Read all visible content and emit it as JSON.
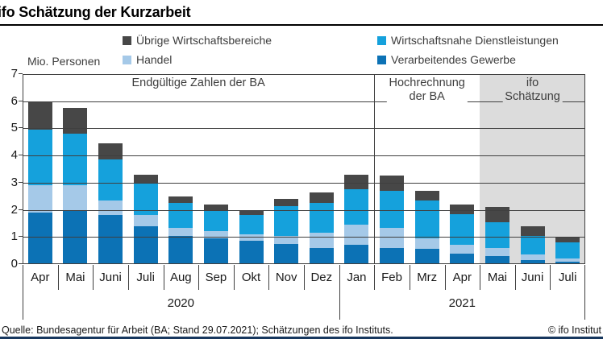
{
  "header": {
    "title": "ifo Schätzung der Kurzarbeit"
  },
  "axis_note": "Mio. Personen",
  "legend": [
    {
      "label": "Übrige Wirtschaftsbereiche",
      "color": "#474747"
    },
    {
      "label": "Wirtschaftsnahe Dienstleistungen",
      "color": "#15a1dc"
    },
    {
      "label": "Handel",
      "color": "#a5c9e8"
    },
    {
      "label": "Verarbeitendes Gewerbe",
      "color": "#0c72b5"
    }
  ],
  "chart_data": {
    "type": "bar",
    "stacked": true,
    "title": "ifo Schätzung der Kurzarbeit",
    "ylabel": "Mio. Personen",
    "ylim": [
      0,
      7
    ],
    "yticks": [
      0,
      1,
      2,
      3,
      4,
      5,
      6,
      7
    ],
    "grid": true,
    "categories": [
      "Apr",
      "Mai",
      "Juni",
      "Juli",
      "Aug",
      "Sep",
      "Okt",
      "Nov",
      "Dez",
      "Jan",
      "Feb",
      "Mrz",
      "Apr",
      "Mai",
      "Juni",
      "Juli"
    ],
    "series": [
      {
        "name": "Verarbeitendes Gewerbe",
        "color": "#0c72b5",
        "values": [
          1.9,
          2.0,
          1.8,
          1.4,
          1.05,
          0.95,
          0.85,
          0.75,
          0.6,
          0.7,
          0.6,
          0.55,
          0.4,
          0.3,
          0.15,
          0.1
        ]
      },
      {
        "name": "Handel",
        "color": "#a5c9e8",
        "values": [
          1.0,
          0.9,
          0.55,
          0.4,
          0.3,
          0.28,
          0.25,
          0.3,
          0.55,
          0.75,
          0.75,
          0.4,
          0.3,
          0.3,
          0.2,
          0.1
        ]
      },
      {
        "name": "Wirtschaftsnahe Dienstleistungen",
        "color": "#15a1dc",
        "values": [
          2.05,
          1.9,
          1.5,
          1.2,
          0.9,
          0.77,
          0.7,
          1.1,
          1.1,
          1.3,
          1.35,
          1.4,
          1.15,
          0.95,
          0.7,
          0.6
        ]
      },
      {
        "name": "Übrige Wirtschaftsbereiche",
        "color": "#474747",
        "values": [
          1.05,
          0.95,
          0.6,
          0.3,
          0.25,
          0.2,
          0.15,
          0.25,
          0.4,
          0.55,
          0.55,
          0.35,
          0.35,
          0.55,
          0.35,
          0.2
        ]
      }
    ],
    "totals": [
      6.0,
      5.75,
      4.45,
      3.3,
      2.5,
      2.2,
      1.95,
      2.4,
      2.65,
      3.3,
      3.25,
      2.7,
      2.2,
      2.1,
      1.4,
      1.0
    ],
    "sections": [
      {
        "label": "Endgültige Zahlen der BA",
        "lines": [
          "Endgültige Zahlen der BA"
        ],
        "from": 0,
        "to": 9,
        "shaded": false,
        "divider": false
      },
      {
        "label": "Hochrechnung der BA",
        "lines": [
          "Hochrechnung",
          "der BA"
        ],
        "from": 10,
        "to": 12,
        "shaded": false,
        "divider": true
      },
      {
        "label": "ifo Schätzung",
        "lines": [
          "ifo Schätzung"
        ],
        "from": 13,
        "to": 15,
        "shaded": true,
        "divider": false
      }
    ],
    "year_groups": [
      {
        "label": "2020",
        "from": 0,
        "to": 8
      },
      {
        "label": "2021",
        "from": 9,
        "to": 15
      }
    ],
    "legend_position": "top",
    "shaded_region_color": "#dcdcdc"
  },
  "footer": {
    "source": "Quelle: Bundesagentur für Arbeit (BA; Stand 29.07.2021); Schätzungen des ifo Instituts.",
    "copyright": "© ifo Institut"
  }
}
